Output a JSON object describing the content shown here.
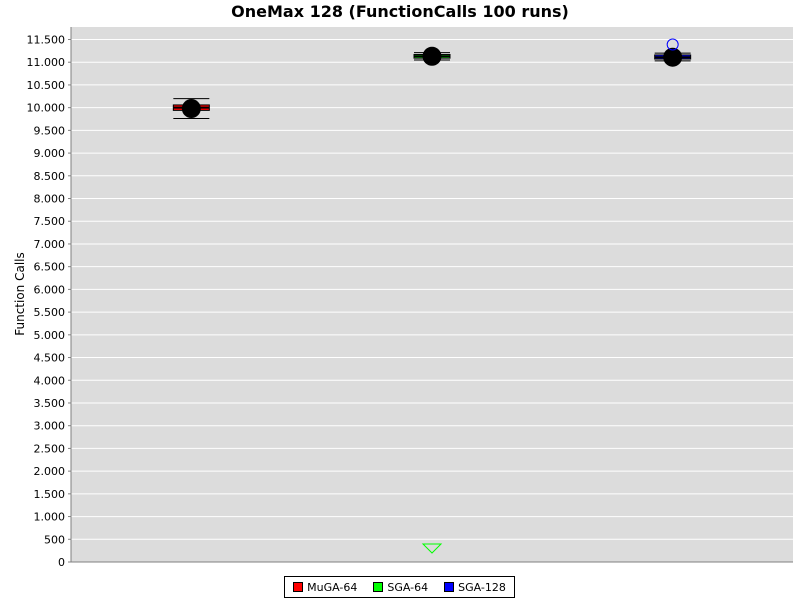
{
  "chart_data": {
    "type": "box",
    "title": "OneMax 128 (FunctionCalls 100 runs)",
    "xlabel": "",
    "ylabel": "Function Calls",
    "ylim": [
      0,
      11800
    ],
    "y_ticks": [
      0,
      500,
      1000,
      1500,
      2000,
      2500,
      3000,
      3500,
      4000,
      4500,
      5000,
      5500,
      6000,
      6500,
      7000,
      7500,
      8000,
      8500,
      9000,
      9500,
      10000,
      10500,
      11000,
      11500
    ],
    "y_tick_labels": [
      "0",
      "500",
      "1.000",
      "1.500",
      "2.000",
      "2.500",
      "3.000",
      "3.500",
      "4.000",
      "4.500",
      "5.000",
      "5.500",
      "6.000",
      "6.500",
      "7.000",
      "7.500",
      "8.000",
      "8.500",
      "9.000",
      "9.500",
      "10.000",
      "10.500",
      "11.000",
      "11.500"
    ],
    "grid": true,
    "legend_position": "bottom",
    "series": [
      {
        "name": "MuGA-64",
        "color": "#ff0000",
        "whisker_low": 9760,
        "q1": 9940,
        "median": 10000,
        "q3": 10060,
        "whisker_high": 10200,
        "mean": 9980,
        "outliers": [],
        "far_outliers_below": false
      },
      {
        "name": "SGA-64",
        "color": "#00ff00",
        "whisker_low": 11050,
        "q1": 11090,
        "median": 11130,
        "q3": 11170,
        "whisker_high": 11210,
        "mean": 11130,
        "outliers": [],
        "far_outliers_below": true
      },
      {
        "name": "SGA-128",
        "color": "#0000ff",
        "whisker_low": 11030,
        "q1": 11070,
        "median": 11110,
        "q3": 11160,
        "whisker_high": 11200,
        "mean": 11110,
        "outliers": [
          11390
        ],
        "far_outliers_below": false
      }
    ]
  }
}
